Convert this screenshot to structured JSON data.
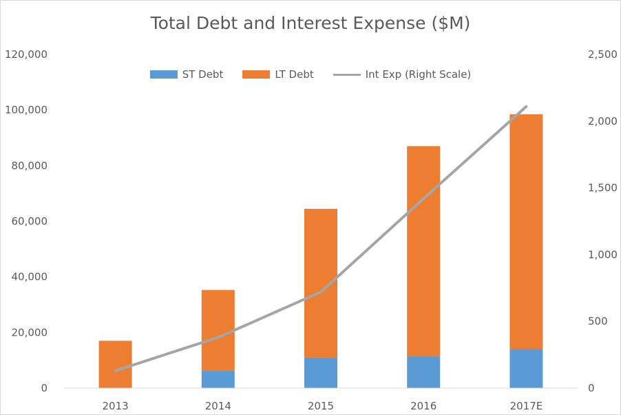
{
  "chart_data": {
    "type": "bar",
    "title": "Total Debt and Interest Expense ($M)",
    "categories": [
      "2013",
      "2014",
      "2015",
      "2016",
      "2017E"
    ],
    "series": [
      {
        "name": "ST Debt",
        "kind": "stacked-bar",
        "axis": "left",
        "color": "#5b9bd5",
        "values": [
          0,
          6300,
          11000,
          11500,
          14000
        ]
      },
      {
        "name": "LT Debt",
        "kind": "stacked-bar",
        "axis": "left",
        "color": "#ed7d31",
        "values": [
          17000,
          29000,
          53500,
          75500,
          84500
        ]
      },
      {
        "name": "Int Exp (Right Scale)",
        "kind": "line",
        "axis": "right",
        "color": "#a5a5a5",
        "values": [
          130,
          380,
          720,
          1420,
          2110
        ]
      }
    ],
    "y_left": {
      "min": 0,
      "max": 120000,
      "ticks": [
        "0",
        "20,000",
        "40,000",
        "60,000",
        "80,000",
        "100,000",
        "120,000"
      ]
    },
    "y_right": {
      "min": 0,
      "max": 2500,
      "ticks": [
        "0",
        "500",
        "1,000",
        "1,500",
        "2,000",
        "2,500"
      ]
    },
    "legend_position": "top",
    "grid": false
  }
}
